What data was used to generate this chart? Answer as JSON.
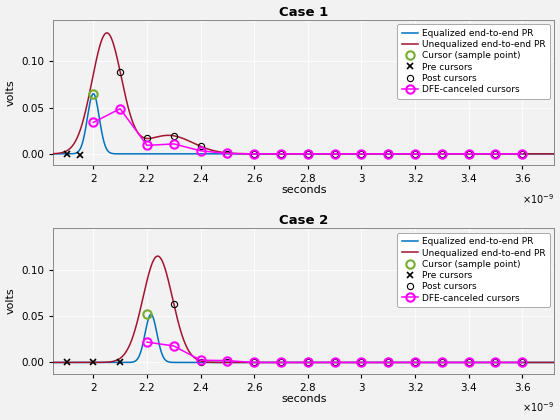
{
  "title1": "Case 1",
  "title2": "Case 2",
  "xlabel": "seconds",
  "ylabel": "volts",
  "xlim": [
    1.85e-09,
    3.72e-09
  ],
  "ylim1": [
    -0.012,
    0.145
  ],
  "ylim2": [
    -0.012,
    0.145
  ],
  "xticks": [
    2e-09,
    2.2e-09,
    2.4e-09,
    2.6e-09,
    2.8e-09,
    3e-09,
    3.2e-09,
    3.4e-09,
    3.6e-09
  ],
  "xtick_labels": [
    "2",
    "2.2",
    "2.4",
    "2.6",
    "2.8",
    "3",
    "3.2",
    "3.4",
    "3.6"
  ],
  "yticks": [
    0,
    0.05,
    0.1
  ],
  "color_eq": "#0072BD",
  "color_uneq": "#A2142F",
  "color_cursor": "#77AC30",
  "color_pre": "#000000",
  "color_post": "#000000",
  "color_dfe": "#FF00FF",
  "legend_entries": [
    "Equalized end-to-end PR",
    "Unequalized end-to-end PR",
    "Cursor (sample point)",
    "Pre cursors",
    "Post cursors",
    "DFE-canceled cursors"
  ],
  "bg_color": "#F2F2F2"
}
